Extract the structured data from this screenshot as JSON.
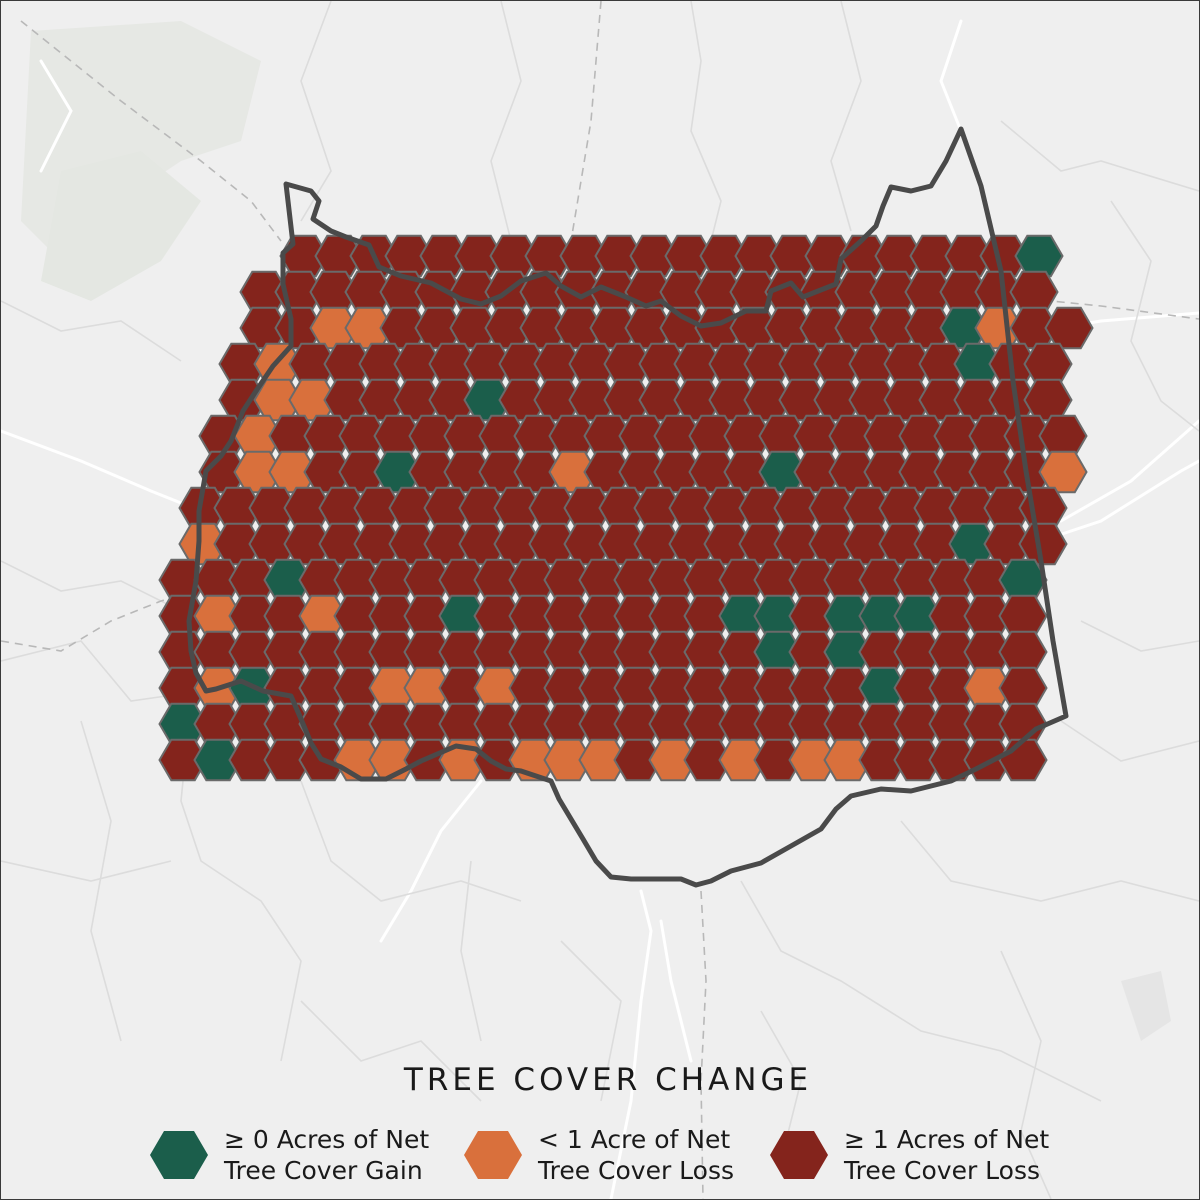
{
  "legend": {
    "title": "TREE COVER CHANGE",
    "items": [
      {
        "line1": "≥ 0 Acres of Net",
        "line2": "Tree Cover Gain",
        "color": "#1b5e4b"
      },
      {
        "line1": "< 1 Acre of Net",
        "line2": "Tree Cover Loss",
        "color": "#d9703c"
      },
      {
        "line1": "≥ 1 Acres of Net",
        "line2": "Tree Cover Loss",
        "color": "#84241c"
      }
    ]
  },
  "colors": {
    "gain": "#1b5e4b",
    "minor_loss": "#d9703c",
    "major_loss": "#84241c",
    "background": "#efefef",
    "roads": "#ffffff",
    "boundary": "#4a4a4a"
  },
  "hex_grid": {
    "legend_codes": {
      "G": "≥ 0 Acres of Net Tree Cover Gain",
      "O": "< 1 Acre of Net Tree Cover Loss",
      "R": "≥ 1 Acres of Net Tree Cover Loss"
    },
    "rows": [
      [
        "RRRRRRRRRRRRRRRRRRRRRG"
      ],
      [
        "RRRRRRRRRRRRRRRRRRRRRRR"
      ],
      [
        "RROORRRRRRRRRRRRRRRRGORR"
      ],
      [
        "RORRRRRRRRRRRRRRRRRRRGRR"
      ],
      [
        "ROORRRRGRRRRRRRRRRRRRRRR"
      ],
      [
        "RORRRRRRRRRRRRRRRRRRRRRRR"
      ],
      [
        "ROORRGRRRRORRRRRGRRRRRRRO"
      ],
      [
        "RRRRRRRRRRRRRRRRRRRRRRRRR"
      ],
      [
        "ORRRRRRRRRRRRRRRRRRRRRGRR"
      ],
      [
        "RRRGRRRRRRRRRRRRRRRRRRRRG"
      ],
      [
        "RORRORRRGRRRRRRRGGRGGGRRR"
      ],
      [
        "RRRRRRRRRRRRRRRRRGRGRRRRR"
      ],
      [
        "ROGRRROORORRRRRRRRRRGRROR"
      ],
      [
        "GRRRRRRRRRRRRRRRRRRRRRRRR"
      ],
      [
        "RGRRROOROROOOROROROORRRRR"
      ]
    ]
  }
}
